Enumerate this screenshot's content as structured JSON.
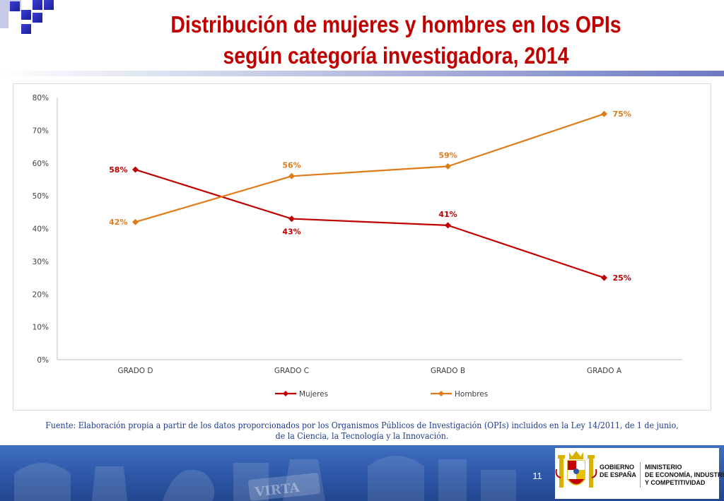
{
  "slide": {
    "title_line1": "Distribución de mujeres y hombres en los OPIs",
    "title_line2": "según categoría investigadora, 2014",
    "source": "Fuente: Elaboración propia a partir de los datos proporcionados por los Organismos Públicos de Investigación (OPIs) incluidos en la Ley 14/2011, de 1 de junio, de la Ciencia, la Tecnología y la Innovación.",
    "page_number": "11",
    "footer_text_left": [
      "GOBIERNO",
      "DE ESPAÑA"
    ],
    "footer_text_right": [
      "MINISTERIO",
      "DE ECONOMÍA, INDUSTRIA",
      "Y COMPETITIVIDAD"
    ],
    "footer_banner_text": "VIRTA",
    "colors": {
      "title": "#c00000",
      "source": "#1f3c8a",
      "footer": "#2c55a4"
    }
  },
  "chart_data": {
    "type": "line",
    "categories": [
      "GRADO D",
      "GRADO C",
      "GRADO B",
      "GRADO A"
    ],
    "series": [
      {
        "name": "Mujeres",
        "values": [
          58,
          43,
          41,
          25
        ],
        "color": "#c00000",
        "labels": [
          "58%",
          "43%",
          "41%",
          "25%"
        ],
        "label_positions": [
          "left",
          "below",
          "above",
          "right"
        ]
      },
      {
        "name": "Hombres",
        "values": [
          42,
          56,
          59,
          75
        ],
        "color": "#e07b1a",
        "labels": [
          "42%",
          "56%",
          "59%",
          "75%"
        ],
        "label_positions": [
          "left",
          "above",
          "above",
          "right"
        ]
      }
    ],
    "ylim": [
      0,
      80
    ],
    "yticks": [
      0,
      10,
      20,
      30,
      40,
      50,
      60,
      70,
      80
    ],
    "ytick_labels": [
      "0%",
      "10%",
      "20%",
      "30%",
      "40%",
      "50%",
      "60%",
      "70%",
      "80%"
    ],
    "xlabel": "",
    "ylabel": "",
    "grid": false,
    "marker": "diamond",
    "legend": "bottom"
  }
}
